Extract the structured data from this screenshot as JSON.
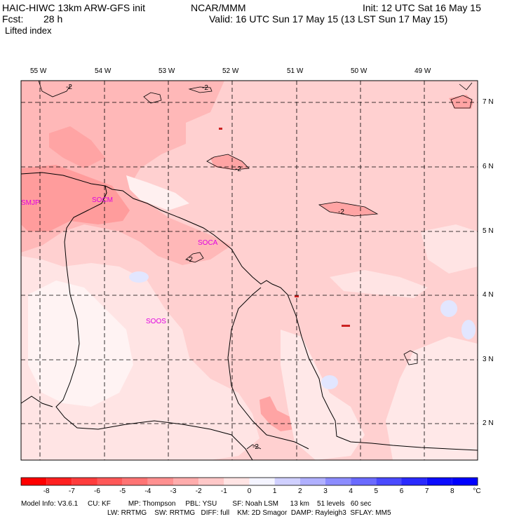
{
  "header": {
    "model_title": "HAIC-HIWC 13km ARW-GFS init",
    "institution": "NCAR/MMM",
    "init_text": "Init: 12 UTC Sat 16 May 15",
    "forecast_label": "Fcst:",
    "forecast_hours": "28 h",
    "valid_text": "Valid: 16 UTC Sun 17 May 15 (13 LST Sun 17 May 15)",
    "field_name": "Lifted index"
  },
  "map": {
    "longitude_labels": [
      "55 W",
      "54 W",
      "53 W",
      "52 W",
      "51 W",
      "50 W",
      "49 W"
    ],
    "latitude_labels": [
      "7 N",
      "6 N",
      "5 N",
      "4 N",
      "3 N",
      "2 N"
    ],
    "stations": [
      "SMJP",
      "SOCM",
      "SOCA",
      "SOOS"
    ],
    "contour_labels": [
      "-2",
      "-2",
      "-2",
      "-2",
      "-2",
      "-2"
    ],
    "colors": {
      "background": "#ffd0d0",
      "mid_pink": "#ffb6b6",
      "deep_pink": "#ff9a9a",
      "pale": "#ffe8e8",
      "near_white": "#fff6f6",
      "blue_tint": "#e3e8ff",
      "land_border": "#000000",
      "station_text": "#e000e0"
    }
  },
  "colorbar": {
    "tick_labels": [
      "-8",
      "-7",
      "-6",
      "-5",
      "-4",
      "-3",
      "-2",
      "-1",
      "0",
      "1",
      "2",
      "3",
      "4",
      "5",
      "6",
      "7",
      "8"
    ],
    "unit": "°C",
    "colors": [
      "#ff0000",
      "#ff2020",
      "#ff3c3c",
      "#ff5858",
      "#ff7474",
      "#ff9090",
      "#ffacac",
      "#ffc8c8",
      "#ffe4e4",
      "#f4f4ff",
      "#d0d0ff",
      "#b0b0ff",
      "#8c8cff",
      "#6a6aff",
      "#4a4aff",
      "#2a2aff",
      "#0c0cff",
      "#0000ff"
    ]
  },
  "footer": {
    "line1": "Model Info: V3.6.1     CU: KF         MP: Thompson     PBL: YSU        SF: Noah LSM      13 km    51 levels   60 sec",
    "line2": "LW: RRTMG    SW: RRTMG   DIFF: full    KM: 2D Smagor  DAMP: Rayleigh3  SFLAY: MM5"
  }
}
